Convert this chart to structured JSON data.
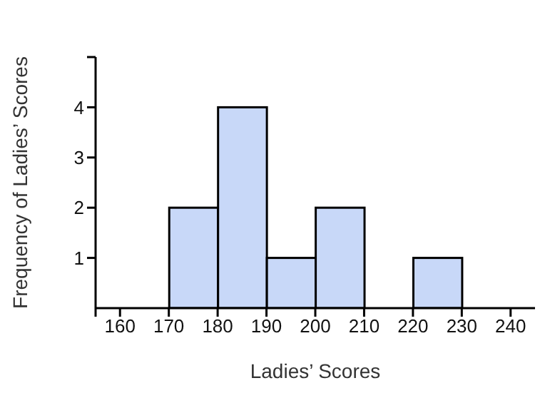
{
  "chart_data": {
    "type": "histogram",
    "xlabel": "Ladies’ Scores",
    "ylabel": "Frequency of Ladies’ Scores",
    "bins": [
      160,
      170,
      180,
      190,
      200,
      210,
      220,
      230,
      240
    ],
    "values": [
      0,
      2,
      4,
      1,
      2,
      0,
      1,
      0
    ],
    "color": "#c8d8f8",
    "xlim": [
      155,
      245
    ],
    "xticks": [
      {
        "value": 155,
        "label": null
      },
      160,
      170,
      180,
      190,
      200,
      210,
      220,
      230,
      240
    ],
    "ylim": [
      0,
      5
    ],
    "yticks": [
      1,
      2,
      3,
      4,
      {
        "value": 5,
        "label": null
      }
    ],
    "grid": false,
    "legend": false
  }
}
